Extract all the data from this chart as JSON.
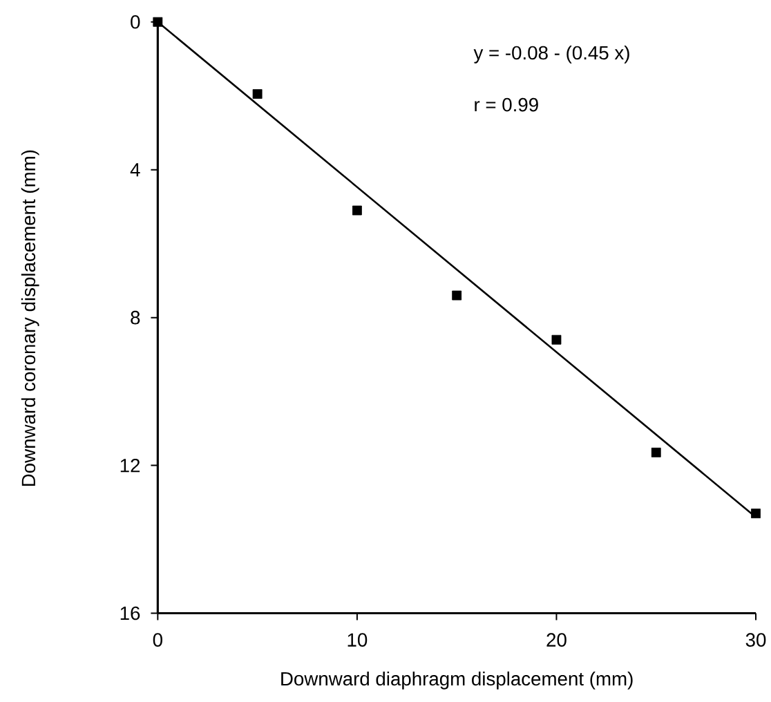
{
  "chart_data": {
    "type": "scatter",
    "xlabel": "Downward diaphragm displacement (mm)",
    "ylabel": "Downward coronary displacement (mm)",
    "annotations": [
      "y = -0.08 - (0.45 x)",
      "r = 0.99"
    ],
    "xlim": [
      0,
      30
    ],
    "ylim": [
      16,
      0
    ],
    "xticks": [
      0,
      10,
      20,
      30
    ],
    "yticks": [
      0,
      4,
      8,
      12,
      16
    ],
    "series": [
      {
        "marker": "square",
        "color": "#000000",
        "x": [
          0,
          5,
          10,
          15,
          20,
          25,
          30
        ],
        "values": [
          0,
          1.95,
          5.1,
          7.4,
          8.6,
          11.65,
          13.3
        ]
      },
      {
        "type": "line",
        "marker": "none",
        "line_style": "solid",
        "color": "#000000",
        "x": [
          0,
          30
        ],
        "values": [
          0,
          13.4
        ]
      }
    ]
  }
}
